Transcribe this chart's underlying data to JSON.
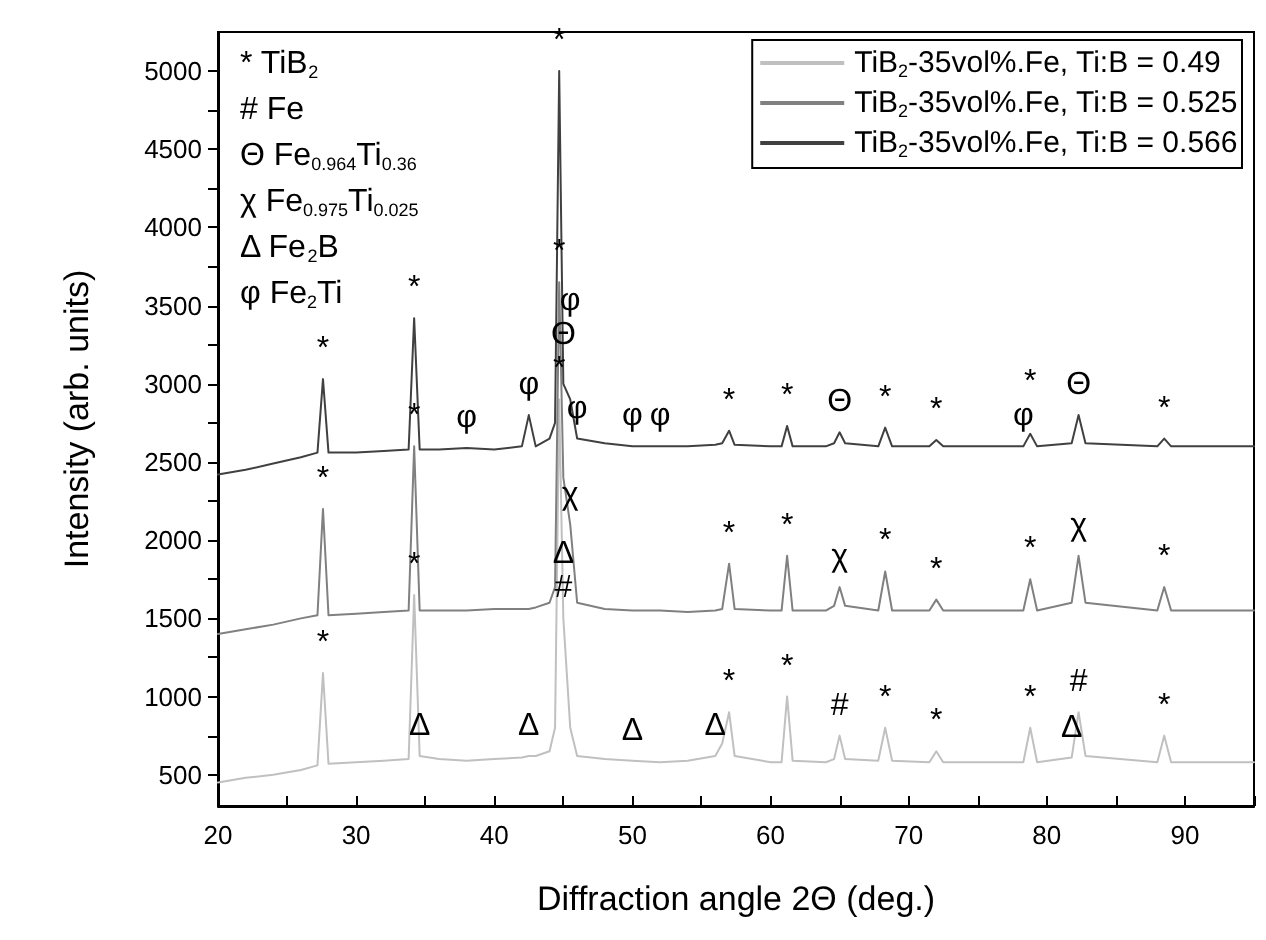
{
  "chart_data": {
    "type": "line",
    "xlabel": "Diffraction angle 2Θ (deg.)",
    "ylabel": "Intensity (arb. units)",
    "x": [
      20,
      22,
      24,
      26,
      27.2,
      27.6,
      28,
      30,
      32,
      33.8,
      34.2,
      34.6,
      36,
      38,
      40,
      42,
      42.5,
      43,
      44,
      44.4,
      44.7,
      45.0,
      45.5,
      46,
      48,
      50,
      52,
      54,
      56,
      56.5,
      57,
      57.4,
      60,
      60.8,
      61.2,
      61.6,
      64,
      64.6,
      65,
      65.4,
      67.8,
      68.3,
      68.8,
      71.5,
      72,
      72.5,
      78.3,
      78.8,
      79.3,
      81.8,
      82.3,
      82.8,
      88,
      88.5,
      89,
      92,
      95
    ],
    "series": [
      {
        "name": "TiB$_{2}$-35vol%.Fe, Ti:B = 0.49",
        "color": "#c0c0c0",
        "values": [
          450,
          480,
          500,
          530,
          560,
          1150,
          570,
          580,
          590,
          600,
          1650,
          620,
          600,
          590,
          600,
          610,
          620,
          620,
          650,
          800,
          2900,
          1500,
          800,
          620,
          600,
          590,
          580,
          590,
          620,
          700,
          900,
          620,
          580,
          580,
          1000,
          590,
          580,
          600,
          750,
          600,
          590,
          800,
          590,
          580,
          650,
          580,
          580,
          800,
          580,
          610,
          900,
          620,
          580,
          750,
          580,
          580,
          580
        ]
      },
      {
        "name": "TiB$_{2}$-35vol%.Fe, Ti:B = 0.525",
        "color": "#808080",
        "values": [
          1400,
          1430,
          1460,
          1500,
          1520,
          2200,
          1520,
          1530,
          1540,
          1550,
          2600,
          1550,
          1550,
          1550,
          1560,
          1560,
          1560,
          1570,
          1600,
          1700,
          3650,
          2400,
          2100,
          1600,
          1560,
          1550,
          1550,
          1540,
          1550,
          1560,
          1850,
          1560,
          1550,
          1550,
          1900,
          1550,
          1550,
          1580,
          1700,
          1580,
          1550,
          1800,
          1550,
          1550,
          1620,
          1550,
          1550,
          1750,
          1550,
          1600,
          1900,
          1600,
          1550,
          1700,
          1550,
          1550,
          1550
        ]
      },
      {
        "name": "TiB$_{2}$-35vol%.Fe, Ti:B = 0.566",
        "color": "#404040",
        "values": [
          2420,
          2450,
          2490,
          2530,
          2560,
          3030,
          2560,
          2560,
          2570,
          2580,
          3420,
          2580,
          2580,
          2590,
          2580,
          2600,
          2800,
          2600,
          2650,
          2750,
          5000,
          3000,
          2900,
          2650,
          2620,
          2600,
          2600,
          2600,
          2610,
          2620,
          2700,
          2610,
          2600,
          2600,
          2730,
          2600,
          2600,
          2620,
          2690,
          2620,
          2600,
          2720,
          2600,
          2600,
          2640,
          2600,
          2600,
          2680,
          2600,
          2620,
          2800,
          2620,
          2600,
          2650,
          2600,
          2600,
          2600
        ]
      }
    ],
    "xlim": [
      20,
      95
    ],
    "xticks": [
      20,
      {
        "value": 25,
        "label": null
      },
      30,
      {
        "value": 35,
        "label": null
      },
      40,
      {
        "value": 45,
        "label": null
      },
      50,
      {
        "value": 55,
        "label": null
      },
      60,
      {
        "value": 65,
        "label": null
      },
      70,
      {
        "value": 75,
        "label": null
      },
      80,
      {
        "value": 85,
        "label": null
      },
      90,
      {
        "value": 95,
        "label": null
      }
    ],
    "ylim": [
      300,
      5250
    ],
    "yticks": [
      500,
      {
        "value": 750,
        "label": null
      },
      1000,
      {
        "value": 1250,
        "label": null
      },
      1500,
      {
        "value": 1750,
        "label": null
      },
      2000,
      {
        "value": 2250,
        "label": null
      },
      2500,
      {
        "value": 2750,
        "label": null
      },
      3000,
      {
        "value": 3250,
        "label": null
      },
      3500,
      {
        "value": 3750,
        "label": null
      },
      4000,
      {
        "value": 4250,
        "label": null
      },
      4500,
      {
        "value": 4750,
        "label": null
      },
      5000
    ],
    "grid": false,
    "legend": "top right",
    "marker": "none",
    "line_style": "solid",
    "annotations": [
      "* TiB$_{2}$",
      "# Fe",
      "Θ Fe$_{0.964}$Ti$_{0.36}$",
      "χ Fe$_{0.975}$Ti$_{0.025}$",
      "Δ Fe$_{2}$B",
      "φ Fe$_{2}$Ti",
      {
        "text": "*",
        "x": 44.7,
        "y": 5000
      },
      {
        "text": "*",
        "x": 44.7,
        "y": 3650
      },
      {
        "text": "*",
        "x": 44.7,
        "y": 2900
      },
      {
        "text": "*",
        "x": 27.6,
        "y": 3030
      },
      {
        "text": "*",
        "x": 34.2,
        "y": 3420
      },
      {
        "text": "φ",
        "x": 38,
        "y": 2590
      },
      {
        "text": "φ",
        "x": 42.5,
        "y": 2800
      },
      {
        "text": "Θ",
        "x": 45.0,
        "y": 3000
      },
      {
        "text": "φ",
        "x": 45.5,
        "y": 2900
      },
      {
        "text": "φ",
        "x": 46,
        "y": 2650
      },
      {
        "text": "φ",
        "x": 50,
        "y": 2600
      },
      {
        "text": "φ",
        "x": 52,
        "y": 2600
      },
      {
        "text": "*",
        "x": 57,
        "y": 2700
      },
      {
        "text": "*",
        "x": 61.2,
        "y": 2730
      },
      {
        "text": "Θ",
        "x": 65,
        "y": 2690
      },
      {
        "text": "*",
        "x": 68.3,
        "y": 2720
      },
      {
        "text": "*",
        "x": 72,
        "y": 2640
      },
      {
        "text": "φ",
        "x": 78.3,
        "y": 2600
      },
      {
        "text": "*",
        "x": 78.8,
        "y": 2680
      },
      {
        "text": "Θ",
        "x": 82.3,
        "y": 2800
      },
      {
        "text": "*",
        "x": 88.5,
        "y": 2650
      },
      {
        "text": "*",
        "x": 27.6,
        "y": 2200
      },
      {
        "text": "*",
        "x": 34.2,
        "y": 2600
      },
      {
        "text": "χ",
        "x": 45.5,
        "y": 2100
      },
      {
        "text": "*",
        "x": 57,
        "y": 1850
      },
      {
        "text": "*",
        "x": 61.2,
        "y": 1900
      },
      {
        "text": "χ",
        "x": 65,
        "y": 1700
      },
      {
        "text": "*",
        "x": 68.3,
        "y": 1800
      },
      {
        "text": "*",
        "x": 72,
        "y": 1620
      },
      {
        "text": "*",
        "x": 78.8,
        "y": 1750
      },
      {
        "text": "χ",
        "x": 82.3,
        "y": 1900
      },
      {
        "text": "*",
        "x": 88.5,
        "y": 1700
      },
      {
        "text": "*",
        "x": 27.6,
        "y": 1150
      },
      {
        "text": "*",
        "x": 34.2,
        "y": 1650
      },
      {
        "text": "Δ",
        "x": 34.6,
        "y": 620
      },
      {
        "text": "Δ",
        "x": 42.5,
        "y": 620
      },
      {
        "text": "#",
        "x": 45.0,
        "y": 1500
      },
      {
        "text": "Δ",
        "x": 45.0,
        "y": 1500
      },
      {
        "text": "Δ",
        "x": 50,
        "y": 590
      },
      {
        "text": "Δ",
        "x": 56,
        "y": 620
      },
      {
        "text": "*",
        "x": 57,
        "y": 900
      },
      {
        "text": "*",
        "x": 61.2,
        "y": 1000
      },
      {
        "text": "#",
        "x": 65,
        "y": 750
      },
      {
        "text": "*",
        "x": 68.3,
        "y": 800
      },
      {
        "text": "*",
        "x": 72,
        "y": 650
      },
      {
        "text": "*",
        "x": 78.8,
        "y": 800
      },
      {
        "text": "Δ",
        "x": 81.8,
        "y": 610
      },
      {
        "text": "#",
        "x": 82.3,
        "y": 900
      },
      {
        "text": "*",
        "x": 88.5,
        "y": 750
      }
    ]
  }
}
